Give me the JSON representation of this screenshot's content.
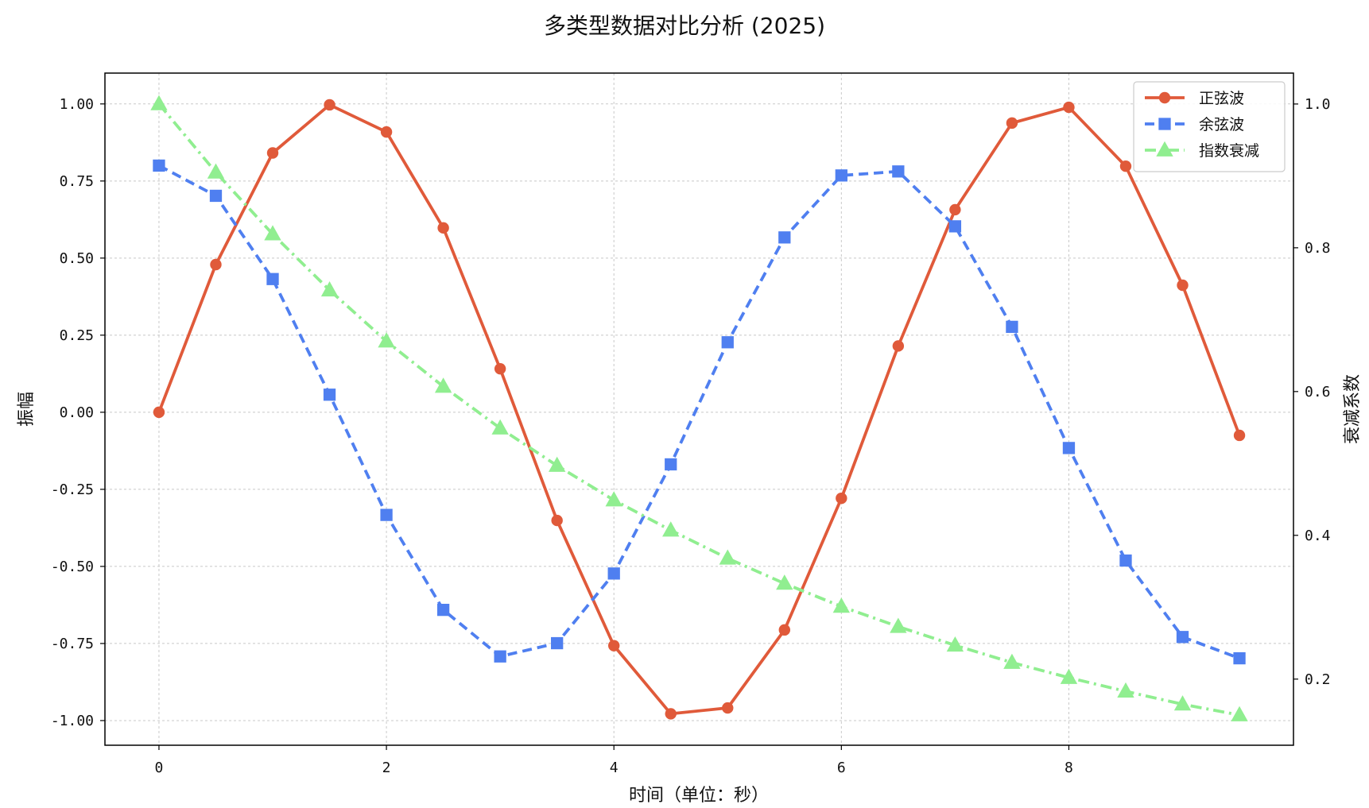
{
  "chart_data": {
    "type": "line",
    "title": "多类型数据对比分析 (2025)",
    "xlabel": "时间（单位：秒）",
    "ylabel": "振幅",
    "y2label": "衰减系数",
    "xlim": [
      -0.475,
      9.975
    ],
    "ylim": [
      -1.08,
      1.1
    ],
    "y2lim": [
      0.108,
      1.043
    ],
    "xticks": [
      0,
      2,
      4,
      6,
      8
    ],
    "xtick_labels": [
      "0",
      "2",
      "4",
      "6",
      "8"
    ],
    "yticks": [
      1.0,
      0.75,
      0.5,
      0.25,
      0.0,
      -0.25,
      -0.5,
      -0.75,
      -1.0
    ],
    "ytick_labels": [
      "1.00",
      "0.75",
      "0.50",
      "0.25",
      "0.00",
      "-0.25",
      "-0.50",
      "-0.75",
      "-1.00"
    ],
    "y2ticks": [
      1.0,
      0.8,
      0.6,
      0.4,
      0.2
    ],
    "y2tick_labels": [
      "1.0",
      "0.8",
      "0.6",
      "0.4",
      "0.2"
    ],
    "grid": true,
    "legend_position": "top-right",
    "x": [
      0,
      0.5,
      1,
      1.5,
      2,
      2.5,
      3,
      3.5,
      4,
      4.5,
      5,
      5.5,
      6,
      6.5,
      7,
      7.5,
      8,
      8.5,
      9,
      9.5
    ],
    "series": [
      {
        "name": "正弦波",
        "axis": "left",
        "color": "#E05A3A",
        "marker": "circle",
        "line_style": "solid",
        "values": [
          0.0,
          0.479,
          0.841,
          0.997,
          0.909,
          0.598,
          0.141,
          -0.351,
          -0.757,
          -0.978,
          -0.959,
          -0.706,
          -0.279,
          0.215,
          0.657,
          0.938,
          0.989,
          0.798,
          0.412,
          -0.075
        ]
      },
      {
        "name": "余弦波",
        "axis": "left",
        "color": "#4F7FF0",
        "marker": "square",
        "line_style": "dashed",
        "values": [
          0.8,
          0.702,
          0.432,
          0.057,
          -0.333,
          -0.641,
          -0.792,
          -0.749,
          -0.523,
          -0.169,
          0.227,
          0.567,
          0.768,
          0.781,
          0.603,
          0.277,
          -0.116,
          -0.481,
          -0.729,
          -0.798
        ]
      },
      {
        "name": "指数衰减",
        "axis": "right",
        "color": "#90EE90",
        "marker": "triangle",
        "line_style": "dashdot",
        "values": [
          1.0,
          0.905,
          0.819,
          0.741,
          0.67,
          0.607,
          0.549,
          0.497,
          0.449,
          0.407,
          0.368,
          0.333,
          0.301,
          0.273,
          0.247,
          0.223,
          0.202,
          0.183,
          0.165,
          0.15
        ]
      }
    ]
  }
}
